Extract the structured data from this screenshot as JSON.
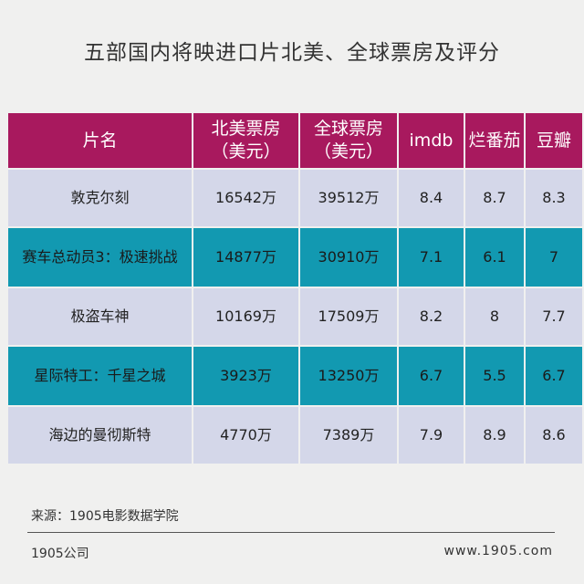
{
  "title": "五部国内将映进口片北美、全球票房及评分",
  "table": {
    "headers": [
      "片名",
      "北美票房\n（美元）",
      "全球票房\n（美元）",
      "imdb",
      "烂番茄",
      "豆瓣"
    ],
    "rows": [
      [
        "敦克尔刻",
        "16542万",
        "39512万",
        "8.4",
        "8.7",
        "8.3"
      ],
      [
        "赛车总动员3：极速挑战",
        "14877万",
        "30910万",
        "7.1",
        "6.1",
        "7"
      ],
      [
        "极盗车神",
        "10169万",
        "17509万",
        "8.2",
        "8",
        "7.7"
      ],
      [
        "星际特工：千星之城",
        "3923万",
        "13250万",
        "6.7",
        "5.5",
        "6.7"
      ],
      [
        "海边的曼彻斯特",
        "4770万",
        "7389万",
        "7.9",
        "8.9",
        "8.6"
      ]
    ]
  },
  "colors": {
    "header": "#a8195e",
    "row_light": "#d4d7e9",
    "row_teal": "#1299b1"
  },
  "source": "来源：1905电影数据学院",
  "footer": {
    "left": "1905公司",
    "right": "www.1905.com"
  }
}
